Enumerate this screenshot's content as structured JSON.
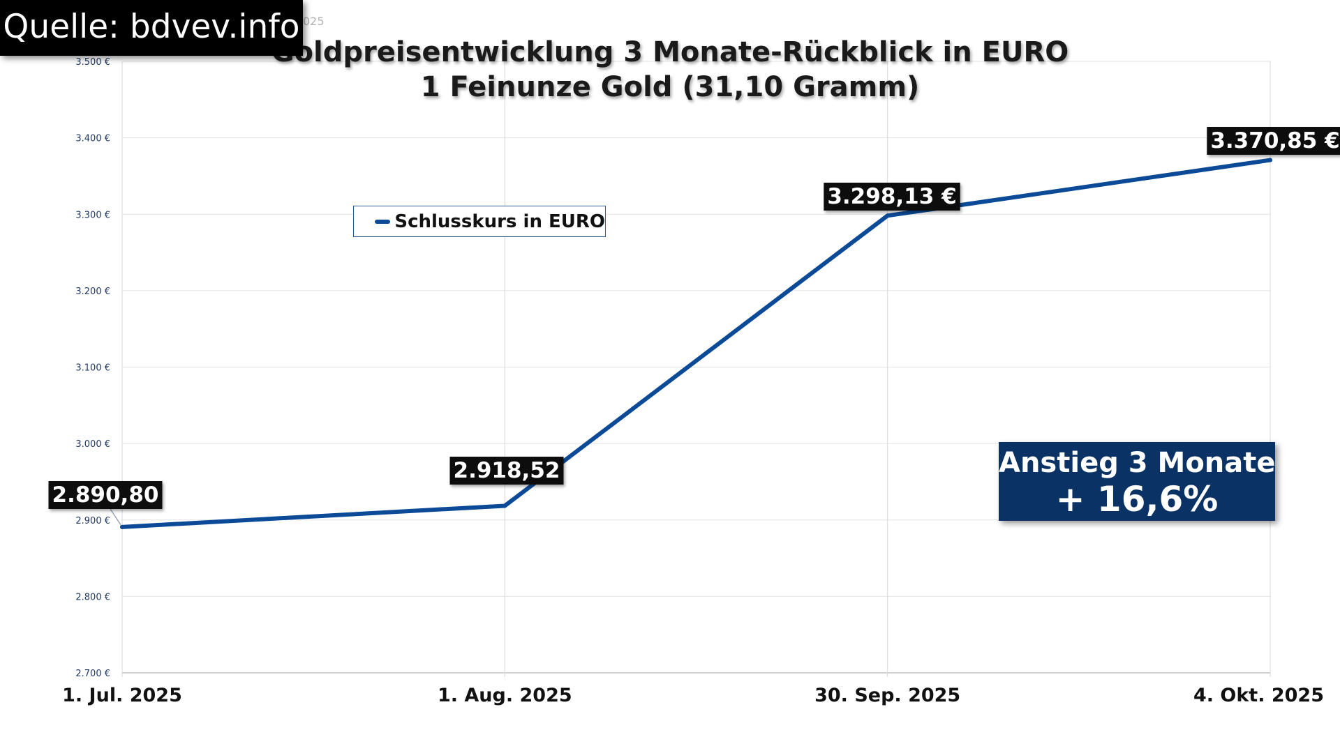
{
  "source_label": "Quelle: bdvev.info",
  "stray_text": "025",
  "highlight": {
    "line1": "Anstieg 3 Monate",
    "line2": "+ 16,6%"
  },
  "chart_data": {
    "type": "line",
    "title": "Goldpreisentwicklung 3 Monate-Rückblick in EURO",
    "subtitle": "1 Feinunze Gold (31,10 Gramm)",
    "categories": [
      "1. Jul. 2025",
      "1. Aug. 2025",
      "30. Sep. 2025",
      "4. Okt. 2025"
    ],
    "series": [
      {
        "name": "Schlusskurs in EURO",
        "values": [
          2890.8,
          2918.52,
          3298.13,
          3370.85
        ],
        "data_labels": [
          "2.890,80",
          "2.918,52",
          "3.298,13 €",
          "3.370,85 €"
        ],
        "color": "#0b4a96"
      }
    ],
    "ylim": [
      2700,
      3500
    ],
    "y_ticks": [
      2700,
      2800,
      2900,
      3000,
      3100,
      3200,
      3300,
      3400,
      3500
    ],
    "y_tick_labels": [
      "2.700 €",
      "2.800 €",
      "2.900 €",
      "3.000 €",
      "3.100 €",
      "3.200 €",
      "3.300 €",
      "3.400 €",
      "3.500 €"
    ],
    "grid": true,
    "legend_position": "top-left",
    "xlabel": "",
    "ylabel": ""
  }
}
